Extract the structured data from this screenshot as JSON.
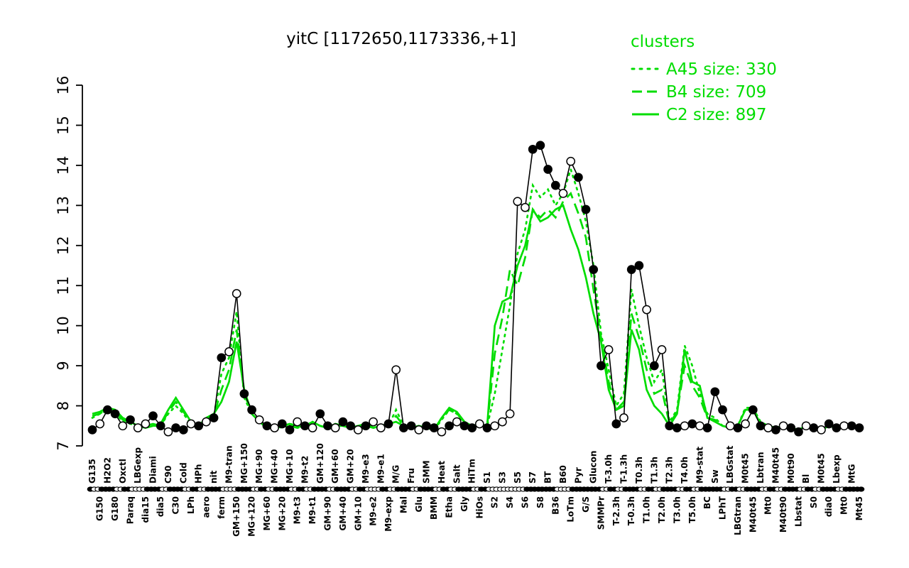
{
  "title": "yitC [1172650,1173336,+1]",
  "legend": {
    "title": "clusters",
    "entries": [
      {
        "label": "A45 size: 330",
        "style": "dotted"
      },
      {
        "label": "B4 size: 709",
        "style": "dashed"
      },
      {
        "label": "C2 size: 897",
        "style": "solid"
      }
    ]
  },
  "colors": {
    "cluster_green": "#00dd00",
    "gene_black": "#000000",
    "background": "#ffffff"
  },
  "chart_data": {
    "type": "line",
    "title": "yitC [1172650,1173336,+1]",
    "ylim": [
      7,
      16
    ],
    "yticks": [
      7,
      8,
      9,
      10,
      11,
      12,
      13,
      14,
      15,
      16
    ],
    "grid": false,
    "legend_position": "top-right",
    "categories": [
      "G135",
      "G150",
      "H2O2",
      "G180",
      "Oxctl",
      "Paraq",
      "LBGexp",
      "dia15",
      "Diami",
      "dia5",
      "C90",
      "C30",
      "Cold",
      "LPh",
      "HPh",
      "aero",
      "nit",
      "ferm",
      "M9-tran",
      "GM+150",
      "MG+150",
      "MG+120",
      "MG+90",
      "MG+60",
      "MG+40",
      "MG+20",
      "MG+10",
      "M9-t3",
      "M9-t2",
      "M9-t1",
      "GM+120",
      "GM+90",
      "GM+60",
      "GM+40",
      "GM+20",
      "GM+10",
      "M9-e3",
      "M9-e2",
      "M9-e1",
      "M9-exp",
      "M/G",
      "Mal",
      "Fru",
      "Glu",
      "SMM",
      "BMM",
      "Heat",
      "Etha",
      "Salt",
      "Gly",
      "HiTm",
      "HiOs",
      "S1",
      "S2",
      "S3",
      "S4",
      "S5",
      "S6",
      "S7",
      "S8",
      "BT",
      "B36",
      "B60",
      "LoTm",
      "Pyr",
      "G/S",
      "Glucon",
      "SMMPr",
      "T-3.0h",
      "T-2.3h",
      "T-1.3h",
      "T-0.3h",
      "T0.3h",
      "T1.0h",
      "T1.3h",
      "T2.0h",
      "T2.3h",
      "T3.0h",
      "T4.0h",
      "T5.0h",
      "M9-stat",
      "BC",
      "Sw",
      "LPhT",
      "LBGstat",
      "LBGtran",
      "M0t45",
      "M40t45",
      "Lbtran",
      "Mt0",
      "M40t45",
      "M40t90",
      "M0t90",
      "Lbstat",
      "Bl",
      "S0",
      "M0t45",
      "dia0",
      "Lbexp",
      "Mt0",
      "MtG",
      "Mt45"
    ],
    "series": [
      {
        "name": "yitC",
        "role": "gene",
        "color": "#000000",
        "style": "solid",
        "markers": true,
        "marker_filled": [
          1,
          0,
          1,
          1,
          0,
          1,
          0,
          0,
          1,
          1,
          0,
          1,
          1,
          0,
          1,
          0,
          1,
          1,
          0,
          0,
          1,
          1,
          0,
          1,
          0,
          1,
          1,
          0,
          1,
          0,
          1,
          1,
          0,
          1,
          1,
          0,
          1,
          0,
          0,
          1,
          0,
          1,
          1,
          0,
          1,
          1,
          0,
          1,
          0,
          1,
          1,
          0,
          1,
          0,
          0,
          0,
          0,
          0,
          1,
          1,
          1,
          1,
          0,
          0,
          1,
          1,
          1,
          1,
          0,
          1,
          0,
          1,
          1,
          0,
          1,
          0,
          1,
          1,
          0,
          1,
          0,
          1,
          1,
          1,
          0,
          1,
          0,
          1,
          1,
          0,
          1,
          0,
          1,
          1,
          0,
          1,
          0,
          1,
          1,
          0,
          1,
          1
        ],
        "values": [
          7.4,
          7.55,
          7.9,
          7.8,
          7.5,
          7.65,
          7.45,
          7.55,
          7.75,
          7.5,
          7.35,
          7.45,
          7.4,
          7.55,
          7.5,
          7.6,
          7.7,
          9.2,
          9.35,
          10.8,
          8.3,
          7.9,
          7.65,
          7.5,
          7.45,
          7.55,
          7.4,
          7.6,
          7.5,
          7.45,
          7.8,
          7.5,
          7.45,
          7.6,
          7.5,
          7.4,
          7.5,
          7.6,
          7.45,
          7.55,
          8.9,
          7.45,
          7.5,
          7.4,
          7.5,
          7.45,
          7.35,
          7.5,
          7.6,
          7.5,
          7.45,
          7.55,
          7.45,
          7.5,
          7.6,
          7.8,
          13.1,
          12.95,
          14.4,
          14.5,
          13.9,
          13.5,
          13.3,
          14.1,
          13.7,
          12.9,
          11.4,
          9.0,
          9.4,
          7.55,
          7.7,
          11.4,
          11.5,
          10.4,
          9.0,
          9.4,
          7.5,
          7.45,
          7.5,
          7.55,
          7.5,
          7.45,
          8.35,
          7.9,
          7.5,
          7.45,
          7.55,
          7.9,
          7.5,
          7.45,
          7.4,
          7.5,
          7.45,
          7.35,
          7.5,
          7.45,
          7.4,
          7.55,
          7.45,
          7.5,
          7.5,
          7.45
        ]
      },
      {
        "name": "A45",
        "role": "cluster",
        "color": "#00dd00",
        "style": "dotted",
        "markers": false,
        "values": [
          7.7,
          7.8,
          7.9,
          7.85,
          7.6,
          7.55,
          7.5,
          7.45,
          7.5,
          7.5,
          7.8,
          8.0,
          7.8,
          7.55,
          7.5,
          7.65,
          7.75,
          8.8,
          9.2,
          10.35,
          8.2,
          7.8,
          7.6,
          7.45,
          7.5,
          7.45,
          7.55,
          7.5,
          7.45,
          7.6,
          7.5,
          7.45,
          7.55,
          7.5,
          7.45,
          7.5,
          7.55,
          7.45,
          7.5,
          7.5,
          7.9,
          7.5,
          7.45,
          7.5,
          7.45,
          7.4,
          7.65,
          7.9,
          7.8,
          7.55,
          7.5,
          7.5,
          7.5,
          8.3,
          9.4,
          10.5,
          11.8,
          12.4,
          13.5,
          13.2,
          13.4,
          13.0,
          13.3,
          13.9,
          13.3,
          12.6,
          11.5,
          9.8,
          8.9,
          8.0,
          8.3,
          10.9,
          10.0,
          9.2,
          8.6,
          8.9,
          7.6,
          7.9,
          9.5,
          9.0,
          8.3,
          7.8,
          7.7,
          7.5,
          7.5,
          7.5,
          7.95,
          7.95,
          7.6,
          7.5,
          7.45,
          7.5,
          7.45,
          7.4,
          7.5,
          7.45,
          7.4,
          7.5,
          7.5,
          7.45,
          7.5,
          7.45
        ]
      },
      {
        "name": "B4",
        "role": "cluster",
        "color": "#00dd00",
        "style": "dashed",
        "markers": false,
        "values": [
          7.75,
          7.8,
          7.95,
          7.9,
          7.65,
          7.6,
          7.5,
          7.5,
          7.55,
          7.5,
          7.85,
          8.1,
          7.85,
          7.6,
          7.5,
          7.65,
          7.75,
          8.4,
          8.9,
          9.9,
          8.3,
          7.8,
          7.6,
          7.5,
          7.45,
          7.5,
          7.5,
          7.45,
          7.5,
          7.6,
          7.5,
          7.45,
          7.5,
          7.5,
          7.45,
          7.5,
          7.5,
          7.45,
          7.5,
          7.5,
          7.75,
          7.5,
          7.45,
          7.5,
          7.45,
          7.4,
          7.7,
          7.9,
          7.8,
          7.6,
          7.5,
          7.5,
          7.5,
          9.3,
          10.2,
          11.4,
          11.0,
          11.7,
          12.9,
          12.7,
          12.9,
          12.7,
          13.1,
          13.3,
          12.8,
          12.2,
          10.9,
          9.7,
          8.6,
          7.9,
          8.1,
          10.3,
          9.7,
          8.9,
          8.3,
          8.4,
          7.55,
          7.85,
          9.0,
          8.5,
          8.2,
          7.7,
          7.65,
          7.5,
          7.45,
          7.5,
          7.9,
          7.9,
          7.55,
          7.5,
          7.45,
          7.5,
          7.45,
          7.4,
          7.5,
          7.45,
          7.4,
          7.5,
          7.45,
          7.5,
          7.5,
          7.45
        ]
      },
      {
        "name": "C2",
        "role": "cluster",
        "color": "#00dd00",
        "style": "solid",
        "markers": false,
        "values": [
          7.8,
          7.85,
          7.95,
          7.9,
          7.7,
          7.6,
          7.5,
          7.45,
          7.5,
          7.55,
          7.9,
          8.2,
          7.9,
          7.6,
          7.5,
          7.7,
          7.8,
          8.1,
          8.6,
          9.6,
          8.4,
          7.8,
          7.6,
          7.5,
          7.45,
          7.5,
          7.55,
          7.5,
          7.45,
          7.6,
          7.5,
          7.45,
          7.55,
          7.5,
          7.45,
          7.5,
          7.55,
          7.45,
          7.5,
          7.55,
          7.6,
          7.5,
          7.45,
          7.5,
          7.45,
          7.4,
          7.7,
          7.95,
          7.85,
          7.6,
          7.5,
          7.55,
          7.5,
          10.0,
          10.6,
          10.7,
          11.5,
          12.0,
          12.9,
          12.6,
          12.7,
          12.9,
          13.0,
          12.4,
          11.9,
          11.2,
          10.3,
          9.6,
          8.4,
          7.9,
          8.0,
          9.9,
          9.4,
          8.4,
          8.0,
          7.8,
          7.5,
          7.8,
          9.4,
          8.6,
          8.5,
          7.7,
          7.6,
          7.5,
          7.45,
          7.5,
          7.9,
          7.9,
          7.55,
          7.5,
          7.45,
          7.5,
          7.45,
          7.4,
          7.5,
          7.45,
          7.4,
          7.5,
          7.45,
          7.5,
          7.45,
          7.5
        ]
      }
    ]
  }
}
